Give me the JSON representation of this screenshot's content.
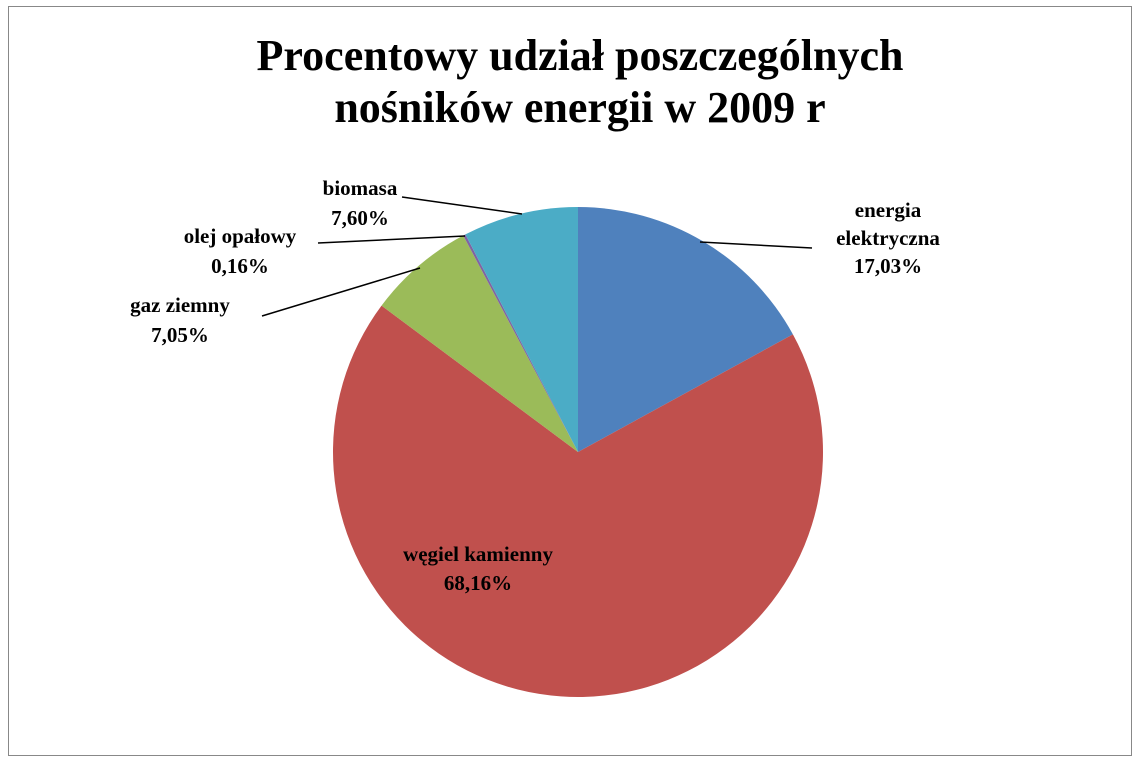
{
  "chart_data": {
    "type": "pie",
    "title": "Procentowy udział poszczególnych nośników energii w 2009 r",
    "categories": [
      "energia elektryczna",
      "węgiel kamienny",
      "gaz ziemny",
      "olej opałowy",
      "biomasa"
    ],
    "values": [
      17.03,
      68.16,
      7.05,
      0.16,
      7.6
    ],
    "value_labels": [
      "17,03%",
      "68,16%",
      "7,05%",
      "0,16%",
      "7,60%"
    ],
    "colors": [
      "#4f81bd",
      "#c0504d",
      "#9bbb59",
      "#8064a2",
      "#4bacc6"
    ]
  }
}
